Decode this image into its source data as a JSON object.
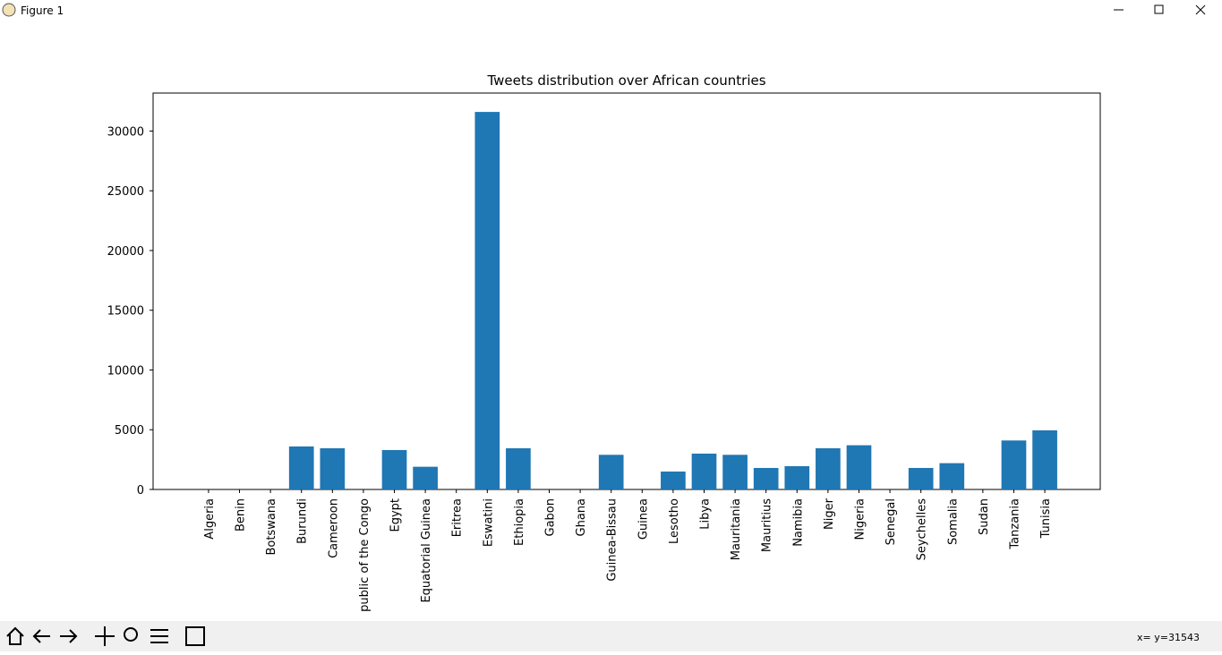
{
  "window": {
    "title": "Figure 1",
    "status": "x= y=31543"
  },
  "chart_data": {
    "type": "bar",
    "title": "Tweets distribution over African countries",
    "categories": [
      "Algeria",
      "Benin",
      "Botswana",
      "Burundi",
      "Cameroon",
      "public of the Congo",
      "Egypt",
      "Equatorial Guinea",
      "Eritrea",
      "Eswatini",
      "Ethiopia",
      "Gabon",
      "Ghana",
      "Guinea-Bissau",
      "Guinea",
      "Lesotho",
      "Libya",
      "Mauritania",
      "Mauritius",
      "Namibia",
      "Niger",
      "Nigeria",
      "Senegal",
      "Seychelles",
      "Somalia",
      "Sudan",
      "Tanzania",
      "Tunisia"
    ],
    "values": [
      0,
      0,
      0,
      3600,
      3450,
      0,
      3300,
      1900,
      0,
      31600,
      3450,
      0,
      0,
      2900,
      0,
      1500,
      3000,
      2900,
      1800,
      1950,
      3450,
      3700,
      0,
      1800,
      2200,
      0,
      4100,
      4950
    ],
    "color": "#1f77b4",
    "ylim": [
      0,
      33180
    ],
    "yticks": [
      0,
      5000,
      10000,
      15000,
      20000,
      25000,
      30000
    ],
    "grid": false
  }
}
